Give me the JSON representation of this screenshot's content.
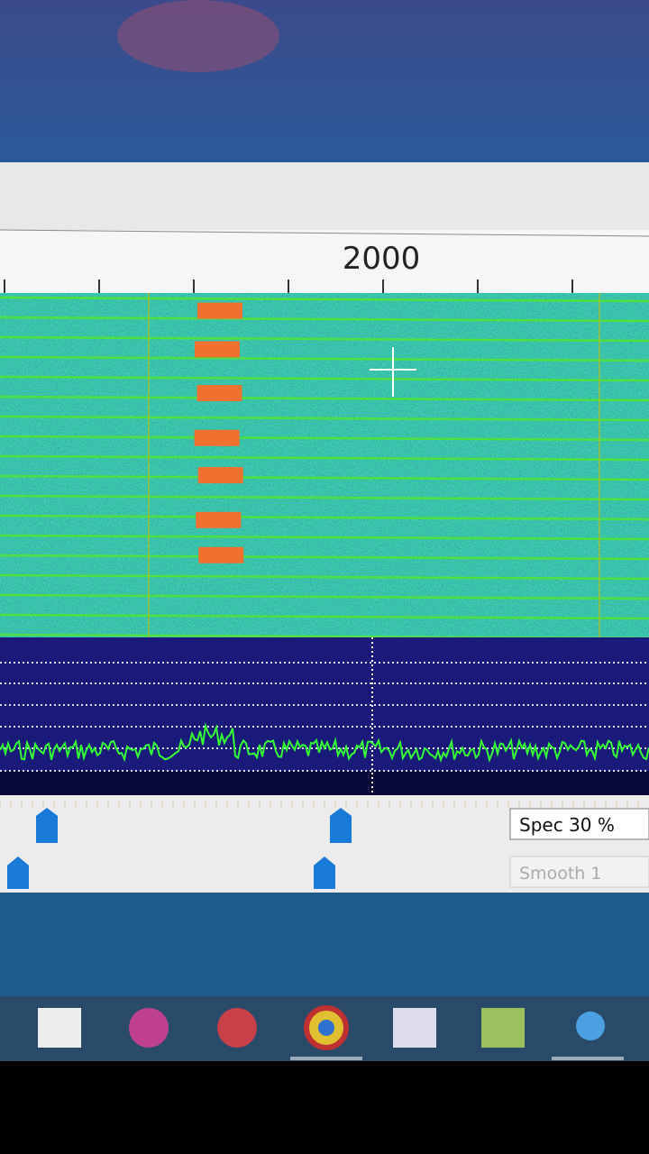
{
  "frequency_scale": {
    "label": "2000"
  },
  "controls": {
    "spec": "Spec 30 %",
    "smooth": "Smooth 1"
  }
}
